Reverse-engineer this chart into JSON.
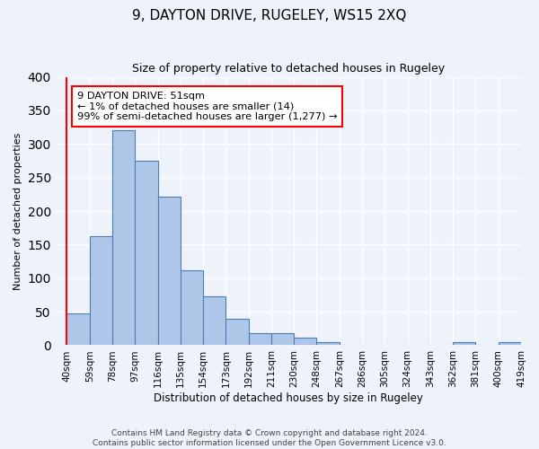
{
  "title": "9, DAYTON DRIVE, RUGELEY, WS15 2XQ",
  "subtitle": "Size of property relative to detached houses in Rugeley",
  "xlabel": "Distribution of detached houses by size in Rugeley",
  "ylabel": "Number of detached properties",
  "bar_values": [
    48,
    163,
    320,
    275,
    222,
    112,
    73,
    39,
    18,
    18,
    11,
    5,
    0,
    0,
    0,
    0,
    0,
    5,
    0,
    5
  ],
  "bin_labels": [
    "40sqm",
    "59sqm",
    "78sqm",
    "97sqm",
    "116sqm",
    "135sqm",
    "154sqm",
    "173sqm",
    "192sqm",
    "211sqm",
    "230sqm",
    "248sqm",
    "267sqm",
    "286sqm",
    "305sqm",
    "324sqm",
    "343sqm",
    "362sqm",
    "381sqm",
    "400sqm",
    "419sqm"
  ],
  "bar_color": "#aec6e8",
  "bar_edge_color": "#4a7eb5",
  "background_color": "#eef2fb",
  "grid_color": "#ffffff",
  "annotation_box_text": "9 DAYTON DRIVE: 51sqm\n← 1% of detached houses are smaller (14)\n99% of semi-detached houses are larger (1,277) →",
  "red_line_x": 0.0,
  "ylim": [
    0,
    400
  ],
  "yticks": [
    0,
    50,
    100,
    150,
    200,
    250,
    300,
    350,
    400
  ],
  "footer_line1": "Contains HM Land Registry data © Crown copyright and database right 2024.",
  "footer_line2": "Contains public sector information licensed under the Open Government Licence v3.0."
}
